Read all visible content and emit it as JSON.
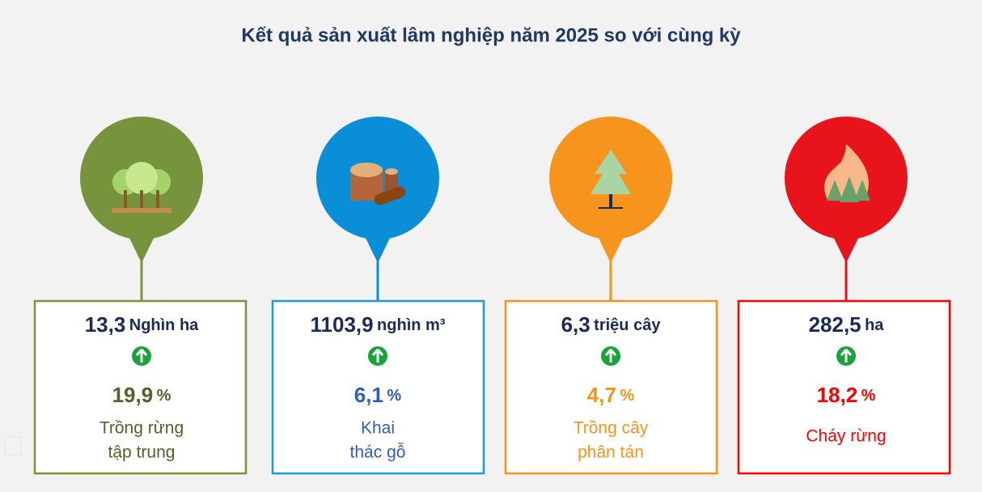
{
  "title": "Kết quả sản xuất lâm nghiệp năm 2025 so với cùng kỳ",
  "cards": [
    {
      "value": "13,3",
      "unit": "Nghìn ha",
      "change": "19,9",
      "change_unit": "%",
      "label": [
        "Trồng rừng",
        "tập trung"
      ]
    },
    {
      "value": "1103,9",
      "unit": "nghìn m³",
      "change": "6,1",
      "change_unit": "%",
      "label": [
        "Khai",
        "thác gỗ"
      ]
    },
    {
      "value": "6,3",
      "unit": "triệu cây",
      "change": "4,7",
      "change_unit": "%",
      "label": [
        "Trồng cây",
        "phân tán"
      ]
    },
    {
      "value": "282,5",
      "unit": "ha",
      "change": "18,2",
      "change_unit": "%",
      "label": [
        "Cháy rừng"
      ]
    }
  ]
}
